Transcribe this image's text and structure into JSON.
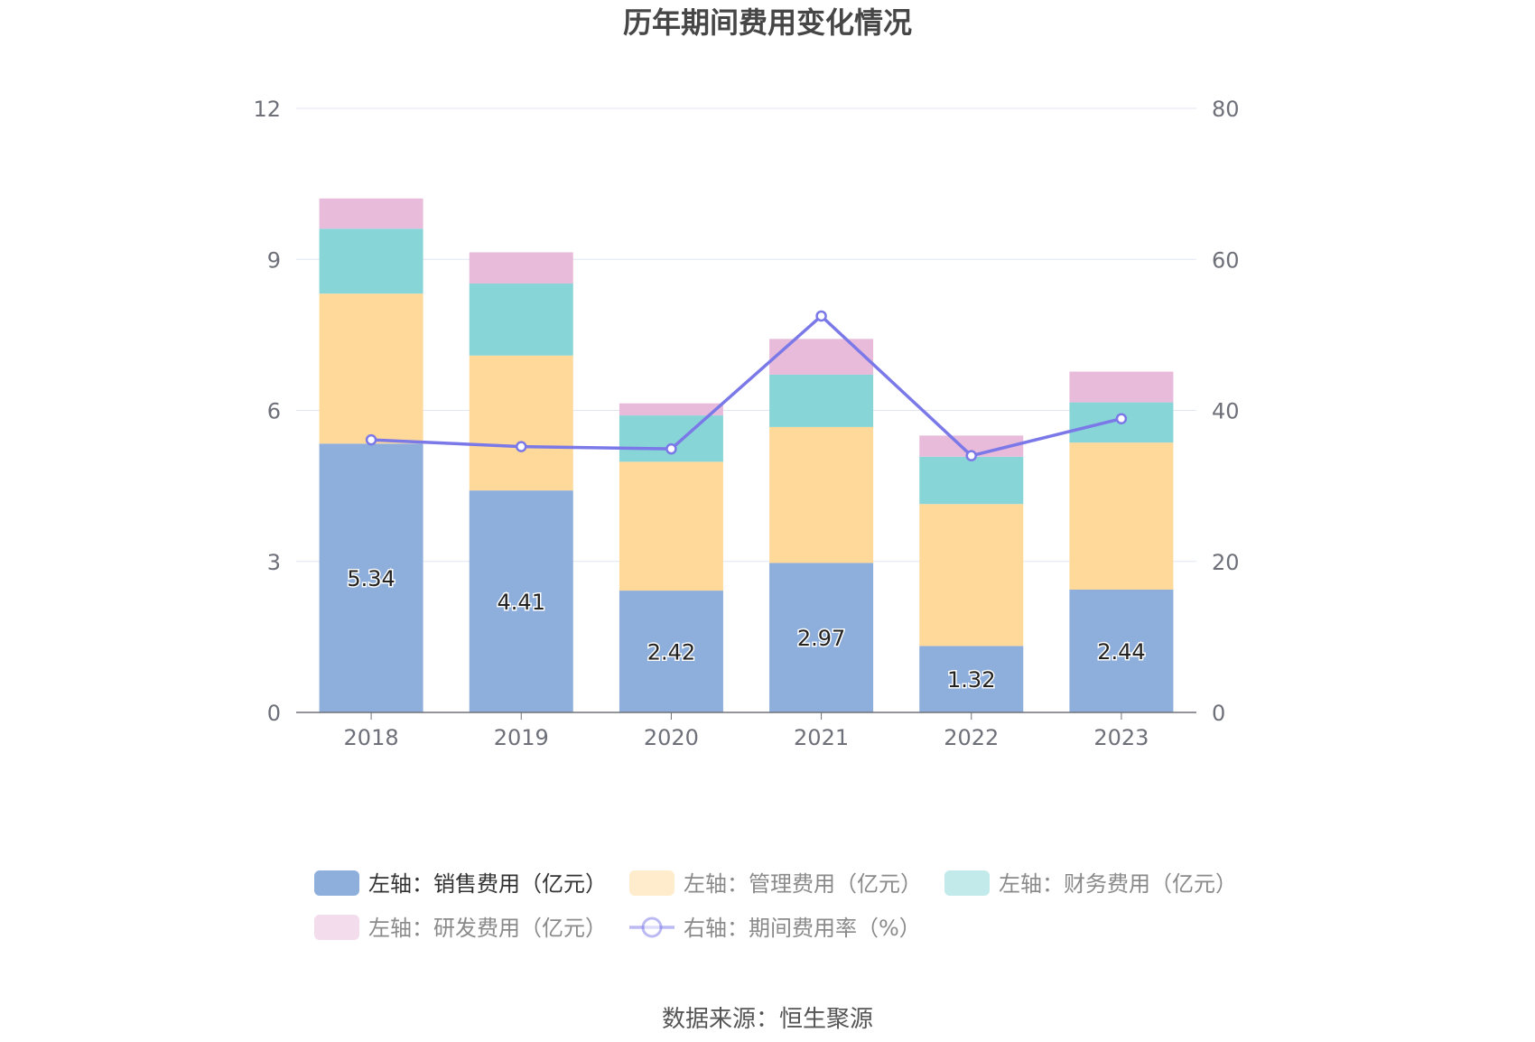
{
  "chart_data": {
    "type": "bar",
    "stacked": true,
    "title": "历年期间费用变化情况",
    "categories": [
      "2018",
      "2019",
      "2020",
      "2021",
      "2022",
      "2023"
    ],
    "y_left": {
      "ylim": [
        0,
        12
      ],
      "ticks": [
        "0",
        "3",
        "6",
        "9",
        "12"
      ]
    },
    "y_right": {
      "ylim": [
        0,
        80
      ],
      "ticks": [
        "0",
        "20",
        "40",
        "60",
        "80"
      ]
    },
    "grid": true,
    "legend_position": "bottom",
    "series": [
      {
        "name": "左轴：销售费用（亿元）",
        "type": "bar",
        "axis": "left",
        "color": "#8eaedc",
        "values": [
          5.34,
          4.41,
          2.42,
          2.97,
          1.32,
          2.44
        ],
        "labels": [
          "5.34",
          "4.41",
          "2.42",
          "2.97",
          "1.32",
          "2.44"
        ]
      },
      {
        "name": "左轴：管理费用（亿元）",
        "type": "bar",
        "axis": "left",
        "color": "#ffd99a",
        "values": [
          2.98,
          2.68,
          2.56,
          2.7,
          2.82,
          2.92
        ]
      },
      {
        "name": "左轴：财务费用（亿元）",
        "type": "bar",
        "axis": "left",
        "color": "#88d5d8",
        "values": [
          1.29,
          1.43,
          0.92,
          1.04,
          0.94,
          0.8
        ]
      },
      {
        "name": "左轴：研发费用（亿元）",
        "type": "bar",
        "axis": "left",
        "color": "#e8bbdb",
        "values": [
          0.6,
          0.62,
          0.24,
          0.71,
          0.42,
          0.61
        ]
      },
      {
        "name": "右轴：期间费用率（%）",
        "type": "line",
        "axis": "right",
        "color": "#7b78e8",
        "values": [
          36.1,
          35.2,
          34.9,
          52.5,
          34.0,
          38.9
        ]
      }
    ],
    "source": "数据来源：恒生聚源"
  }
}
